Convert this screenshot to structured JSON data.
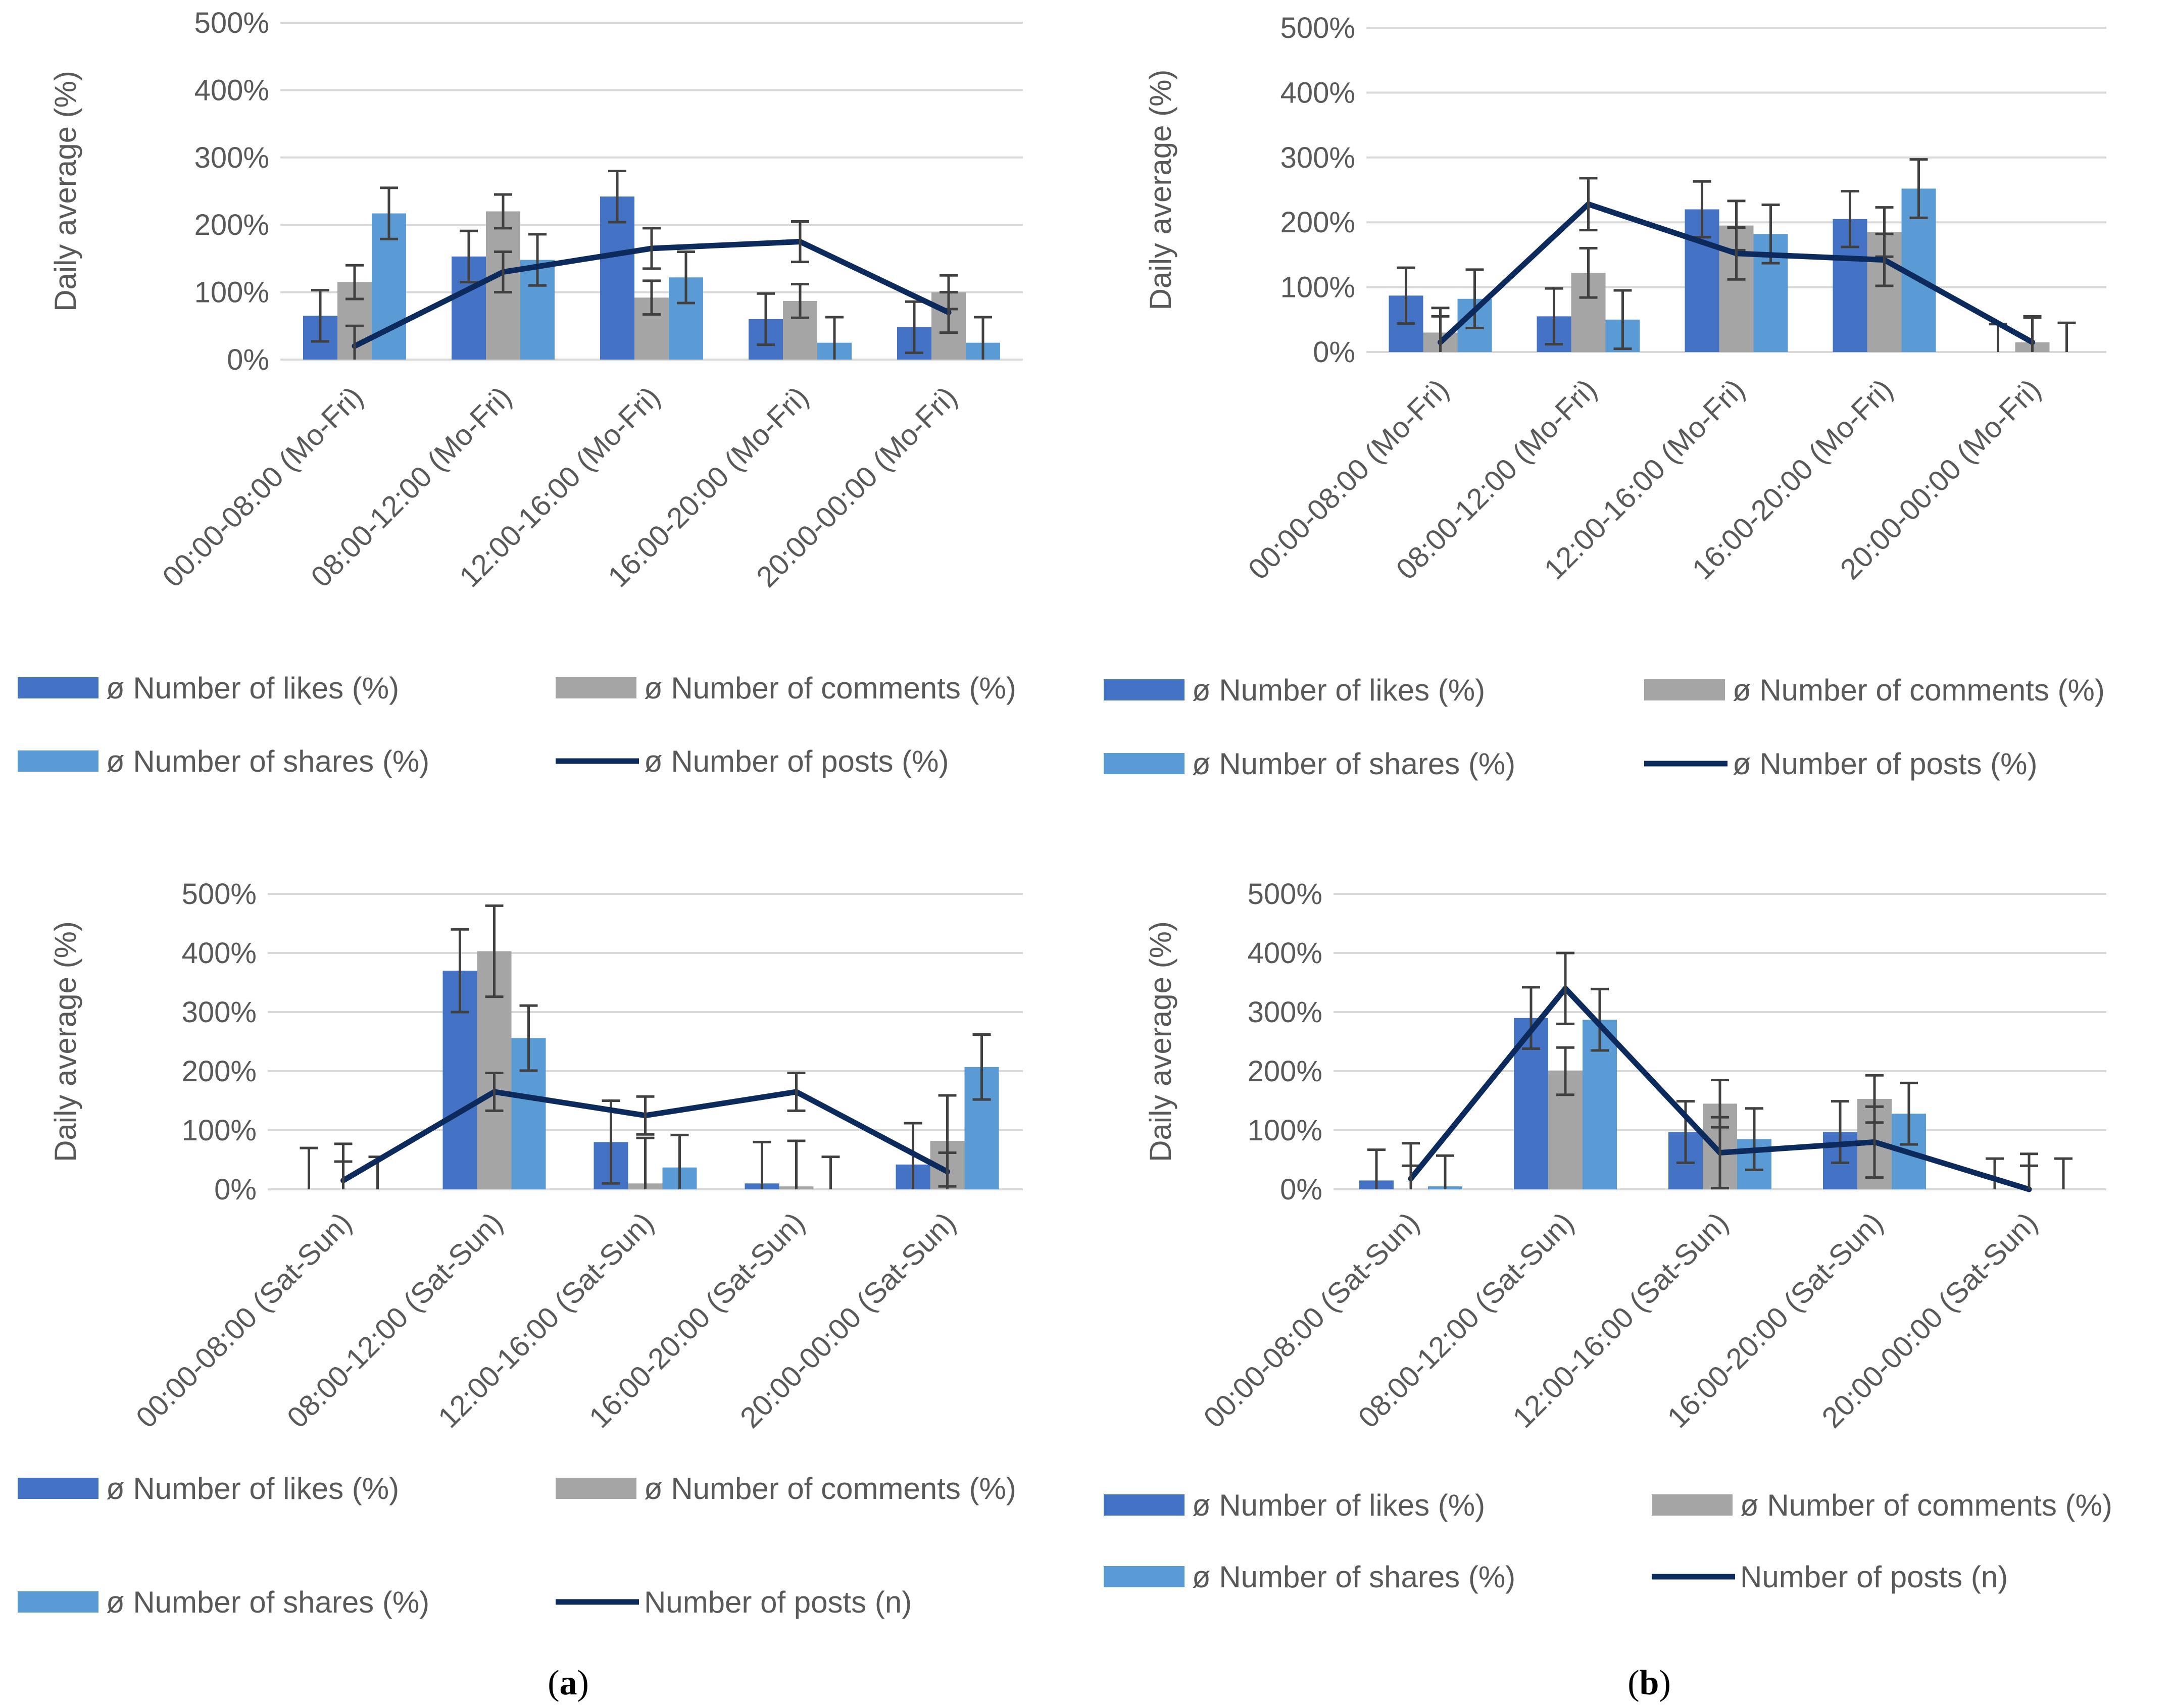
{
  "colors": {
    "likes": "#4472C4",
    "comments": "#A5A5A5",
    "shares": "#5B9BD5",
    "posts": "#0D2A5C",
    "grid": "#D9D9D9",
    "error": "#404040"
  },
  "captions": {
    "a": "a",
    "b": "b"
  },
  "chart_data": [
    {
      "type": "bar",
      "panel": "a-top",
      "title": "",
      "xlabel": "",
      "ylabel": "Daily average (%)",
      "ylim": [
        0,
        500
      ],
      "yticks": [
        "0%",
        "100%",
        "200%",
        "300%",
        "400%",
        "500%"
      ],
      "grid": true,
      "categories": [
        "00:00-08:00 (Mo-Fri)",
        "08:00-12:00 (Mo-Fri)",
        "12:00-16:00 (Mo-Fri)",
        "16:00-20:00 (Mo-Fri)",
        "20:00-00:00 (Mo-Fri)"
      ],
      "series": [
        {
          "name": "ø Number of likes (%)",
          "kind": "bar",
          "color": "likes",
          "values": [
            65,
            153,
            242,
            60,
            48
          ],
          "err": [
            38,
            38,
            38,
            38,
            38
          ]
        },
        {
          "name": "ø Number of comments (%)",
          "kind": "bar",
          "color": "comments",
          "values": [
            115,
            220,
            92,
            87,
            100
          ],
          "err": [
            25,
            25,
            25,
            25,
            25
          ]
        },
        {
          "name": "ø Number of shares (%)",
          "kind": "bar",
          "color": "shares",
          "values": [
            217,
            148,
            122,
            25,
            25
          ],
          "err": [
            38,
            38,
            38,
            38,
            38
          ]
        },
        {
          "name": "ø Number of posts (%)",
          "kind": "line",
          "color": "posts",
          "values": [
            20,
            130,
            165,
            175,
            70
          ],
          "err": [
            30,
            30,
            30,
            30,
            30
          ]
        }
      ],
      "legend": "bottom"
    },
    {
      "type": "bar",
      "panel": "b-top",
      "title": "",
      "xlabel": "",
      "ylabel": "Daily average (%)",
      "ylim": [
        0,
        500
      ],
      "yticks": [
        "0%",
        "100%",
        "200%",
        "300%",
        "400%",
        "500%"
      ],
      "grid": true,
      "categories": [
        "00:00-08:00 (Mo-Fri)",
        "08:00-12:00 (Mo-Fri)",
        "12:00-16:00 (Mo-Fri)",
        "16:00-20:00 (Mo-Fri)",
        "20:00-00:00 (Mo-Fri)"
      ],
      "series": [
        {
          "name": "ø Number of likes (%)",
          "kind": "bar",
          "color": "likes",
          "values": [
            87,
            55,
            220,
            205,
            0
          ],
          "err": [
            43,
            43,
            43,
            43,
            43
          ]
        },
        {
          "name": "ø Number of comments (%)",
          "kind": "bar",
          "color": "comments",
          "values": [
            30,
            122,
            195,
            185,
            15
          ],
          "err": [
            38,
            38,
            38,
            38,
            38
          ]
        },
        {
          "name": "ø Number of shares (%)",
          "kind": "bar",
          "color": "shares",
          "values": [
            82,
            50,
            182,
            252,
            0
          ],
          "err": [
            45,
            45,
            45,
            45,
            45
          ]
        },
        {
          "name": "ø Number of posts (%)",
          "kind": "line",
          "color": "posts",
          "values": [
            15,
            228,
            152,
            142,
            15
          ],
          "err": [
            40,
            40,
            40,
            40,
            40
          ]
        }
      ],
      "legend": "bottom"
    },
    {
      "type": "bar",
      "panel": "a-bottom",
      "title": "",
      "xlabel": "",
      "ylabel": "Daily average (%)",
      "ylim": [
        0,
        500
      ],
      "yticks": [
        "0%",
        "100%",
        "200%",
        "300%",
        "400%",
        "500%"
      ],
      "grid": true,
      "categories": [
        "00:00-08:00 (Sat-Sun)",
        "08:00-12:00 (Sat-Sun)",
        "12:00-16:00 (Sat-Sun)",
        "16:00-20:00 (Sat-Sun)",
        "20:00-00:00 (Sat-Sun)"
      ],
      "series": [
        {
          "name": "ø Number of likes (%)",
          "kind": "bar",
          "color": "likes",
          "values": [
            0,
            370,
            80,
            10,
            42
          ],
          "err": [
            70,
            70,
            70,
            70,
            70
          ]
        },
        {
          "name": "ø Number of comments (%)",
          "kind": "bar",
          "color": "comments",
          "values": [
            0,
            403,
            10,
            5,
            82
          ],
          "err": [
            77,
            77,
            77,
            77,
            77
          ]
        },
        {
          "name": "ø Number of shares (%)",
          "kind": "bar",
          "color": "shares",
          "values": [
            0,
            256,
            37,
            0,
            207
          ],
          "err": [
            55,
            55,
            55,
            55,
            55
          ]
        },
        {
          "name": "Number of posts (n)",
          "kind": "line",
          "color": "posts",
          "values": [
            15,
            165,
            125,
            165,
            30
          ],
          "err": [
            32,
            32,
            32,
            32,
            32
          ]
        }
      ],
      "legend": "bottom"
    },
    {
      "type": "bar",
      "panel": "b-bottom",
      "title": "",
      "xlabel": "",
      "ylabel": "Daily average (%)",
      "ylim": [
        0,
        500
      ],
      "yticks": [
        "0%",
        "100%",
        "200%",
        "300%",
        "400%",
        "500%"
      ],
      "grid": true,
      "categories": [
        "00:00-08:00 (Sat-Sun)",
        "08:00-12:00 (Sat-Sun)",
        "12:00-16:00 (Sat-Sun)",
        "16:00-20:00 (Sat-Sun)",
        "20:00-00:00 (Sat-Sun)"
      ],
      "series": [
        {
          "name": "ø Number of likes (%)",
          "kind": "bar",
          "color": "likes",
          "values": [
            15,
            290,
            97,
            97,
            0
          ],
          "err": [
            52,
            52,
            52,
            52,
            52
          ]
        },
        {
          "name": "ø Number of comments (%)",
          "kind": "bar",
          "color": "comments",
          "values": [
            0,
            200,
            145,
            153,
            0
          ],
          "err": [
            40,
            40,
            40,
            40,
            40
          ]
        },
        {
          "name": "ø Number of shares (%)",
          "kind": "bar",
          "color": "shares",
          "values": [
            5,
            287,
            85,
            128,
            0
          ],
          "err": [
            52,
            52,
            52,
            52,
            52
          ]
        },
        {
          "name": "Number of posts (n)",
          "kind": "line",
          "color": "posts",
          "values": [
            18,
            340,
            62,
            80,
            0
          ],
          "err": [
            60,
            60,
            60,
            60,
            60
          ]
        }
      ],
      "legend": "bottom"
    }
  ]
}
